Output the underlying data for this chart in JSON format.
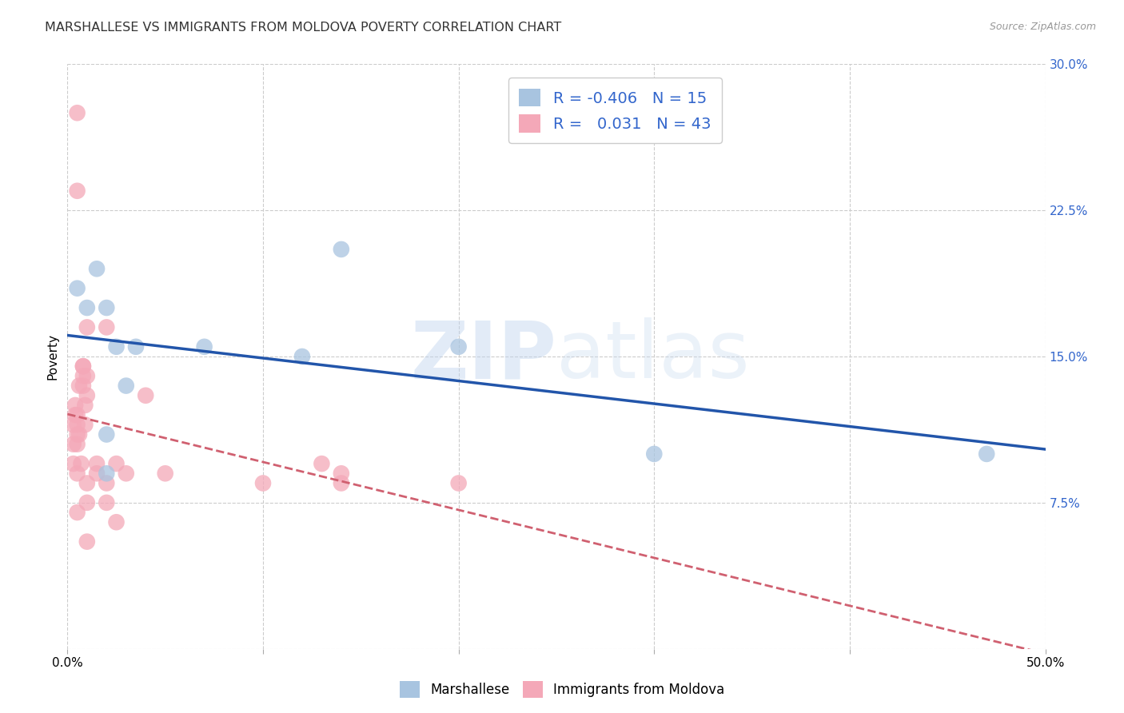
{
  "title": "MARSHALLESE VS IMMIGRANTS FROM MOLDOVA POVERTY CORRELATION CHART",
  "source": "Source: ZipAtlas.com",
  "ylabel": "Poverty",
  "watermark": "ZIPatlas",
  "legend_blue_R": "-0.406",
  "legend_blue_N": "15",
  "legend_pink_R": "0.031",
  "legend_pink_N": "43",
  "xlim": [
    0.0,
    0.5
  ],
  "ylim": [
    0.0,
    0.3
  ],
  "xticks": [
    0.0,
    0.1,
    0.2,
    0.3,
    0.4,
    0.5
  ],
  "yticks": [
    0.0,
    0.075,
    0.15,
    0.225,
    0.3
  ],
  "xticklabels": [
    "0.0%",
    "",
    "",
    "",
    "",
    "50.0%"
  ],
  "yticklabels": [
    "",
    "7.5%",
    "15.0%",
    "22.5%",
    "30.0%"
  ],
  "blue_scatter_color": "#a8c4e0",
  "pink_scatter_color": "#f4a8b8",
  "blue_line_color": "#2255aa",
  "pink_line_color": "#d06070",
  "blue_x": [
    0.005,
    0.01,
    0.015,
    0.02,
    0.025,
    0.03,
    0.035,
    0.07,
    0.12,
    0.14,
    0.2,
    0.3,
    0.47,
    0.02,
    0.02
  ],
  "blue_y": [
    0.185,
    0.175,
    0.195,
    0.175,
    0.155,
    0.135,
    0.155,
    0.155,
    0.15,
    0.205,
    0.155,
    0.1,
    0.1,
    0.11,
    0.09
  ],
  "pink_x": [
    0.003,
    0.003,
    0.003,
    0.004,
    0.004,
    0.005,
    0.005,
    0.005,
    0.005,
    0.005,
    0.005,
    0.006,
    0.006,
    0.007,
    0.008,
    0.008,
    0.008,
    0.009,
    0.009,
    0.01,
    0.01,
    0.01,
    0.01,
    0.01,
    0.015,
    0.015,
    0.02,
    0.02,
    0.02,
    0.025,
    0.025,
    0.03,
    0.04,
    0.05,
    0.1,
    0.13,
    0.14,
    0.005,
    0.005,
    0.008,
    0.01,
    0.14,
    0.2
  ],
  "pink_y": [
    0.115,
    0.105,
    0.095,
    0.125,
    0.12,
    0.12,
    0.115,
    0.11,
    0.105,
    0.09,
    0.07,
    0.135,
    0.11,
    0.095,
    0.145,
    0.14,
    0.135,
    0.125,
    0.115,
    0.14,
    0.13,
    0.085,
    0.075,
    0.055,
    0.095,
    0.09,
    0.165,
    0.085,
    0.075,
    0.095,
    0.065,
    0.09,
    0.13,
    0.09,
    0.085,
    0.095,
    0.09,
    0.275,
    0.235,
    0.145,
    0.165,
    0.085,
    0.085
  ],
  "background_color": "#ffffff",
  "grid_color": "#cccccc",
  "title_fontsize": 11.5,
  "axis_label_fontsize": 11,
  "tick_fontsize": 11,
  "legend_label_blue": "Marshallese",
  "legend_label_pink": "Immigrants from Moldova",
  "legend_text_color": "#3366cc"
}
